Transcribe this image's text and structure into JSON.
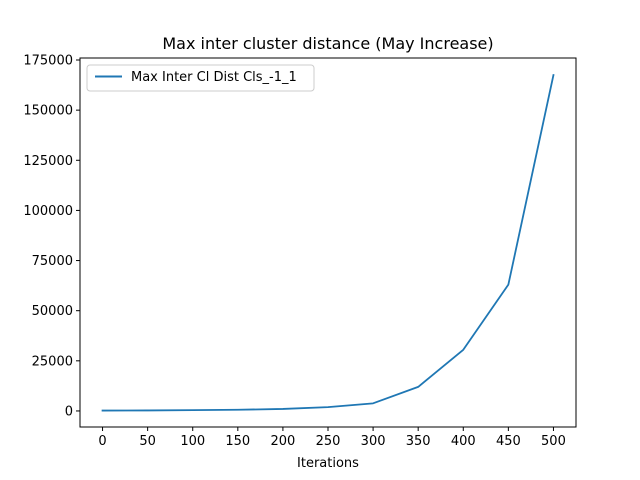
{
  "chart_data": {
    "type": "line",
    "title": "Max inter cluster distance (May Increase)",
    "xlabel": "Iterations",
    "ylabel": "",
    "xlim": [
      -25,
      525
    ],
    "ylim": [
      -8000,
      176000
    ],
    "xticks": [
      0,
      50,
      100,
      150,
      200,
      250,
      300,
      350,
      400,
      450,
      500
    ],
    "yticks": [
      0,
      25000,
      50000,
      75000,
      100000,
      125000,
      150000,
      175000
    ],
    "grid": false,
    "legend_position": "upper left",
    "series": [
      {
        "name": "Max Inter Cl Dist Cls_-1_1",
        "color": "#1f77b4",
        "x": [
          0,
          50,
          100,
          150,
          200,
          250,
          300,
          350,
          400,
          450,
          500
        ],
        "y": [
          200,
          250,
          400,
          600,
          1000,
          1900,
          3800,
          12000,
          30500,
          63000,
          167500
        ]
      }
    ]
  }
}
